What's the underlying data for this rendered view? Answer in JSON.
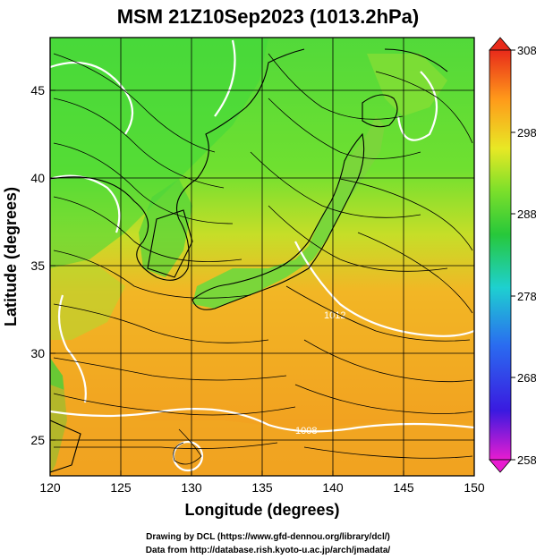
{
  "title": "MSM 21Z10Sep2023 (1013.2hPa)",
  "x_axis": {
    "label": "Longitude (degrees)",
    "ticks": [
      "120",
      "125",
      "130",
      "135",
      "140",
      "145",
      "150"
    ]
  },
  "y_axis": {
    "label": "Latitude  (degrees)",
    "ticks": [
      "25",
      "30",
      "35",
      "40",
      "45"
    ]
  },
  "colorbar": {
    "labels": [
      "308",
      "298",
      "288",
      "278",
      "268",
      "258"
    ]
  },
  "contour_labels": [
    "1012",
    "1008"
  ],
  "credits": {
    "line1": "Drawing by DCL (https://www.gfd-dennou.org/library/dcl/)",
    "line2": "Data from http://database.rish.kyoto-u.ac.jp/arch/jmadata/"
  },
  "colors": {
    "warm": "#ff9a1a",
    "mild": "#c8e02a",
    "cool": "#39d93a",
    "contour": "#ffffff",
    "streamline": "#000000"
  }
}
